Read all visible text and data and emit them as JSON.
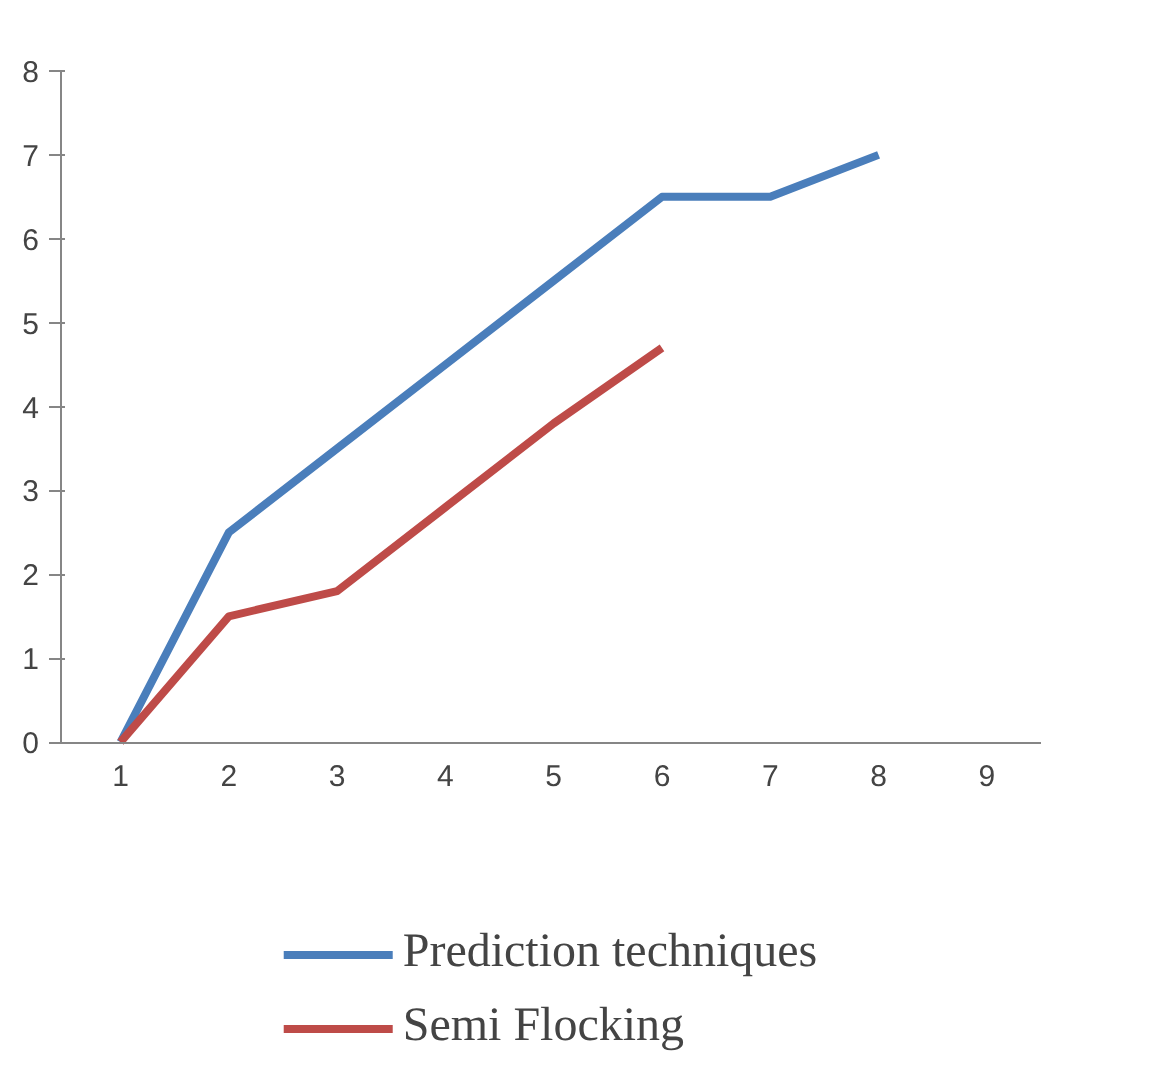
{
  "chart_data": {
    "type": "line",
    "categories": [
      "1",
      "2",
      "3",
      "4",
      "5",
      "6",
      "7",
      "8",
      "9"
    ],
    "series": [
      {
        "name": "Prediction techniques",
        "color": "#4a7ebb",
        "values": [
          0,
          2.5,
          3.5,
          4.5,
          5.5,
          6.5,
          6.5,
          7,
          null
        ]
      },
      {
        "name": "Semi Flocking",
        "color": "#be4b48",
        "values": [
          0,
          1.5,
          1.8,
          2.8,
          3.8,
          4.7,
          null,
          null,
          null
        ]
      }
    ],
    "ylim": [
      0,
      8
    ],
    "yticks": [
      0,
      1,
      2,
      3,
      4,
      5,
      6,
      7,
      8
    ],
    "grid": false,
    "legend": "bottom",
    "marker": "none",
    "line_style": "solid"
  }
}
